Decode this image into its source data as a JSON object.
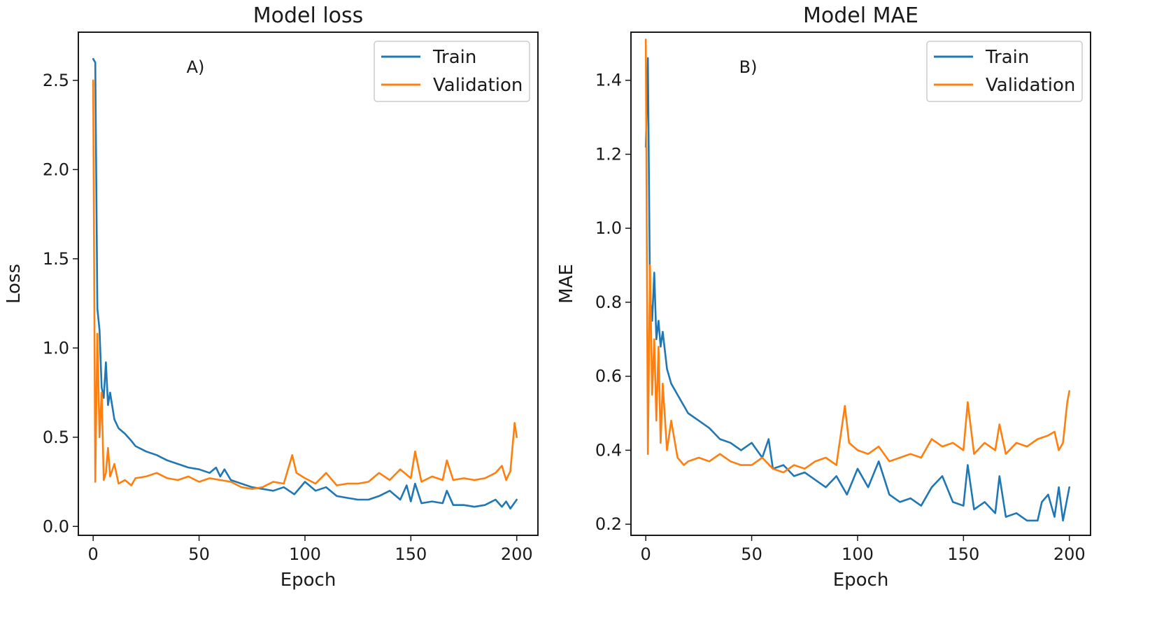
{
  "chart_data": [
    {
      "id": "loss",
      "type": "line",
      "title": "Model loss",
      "panel_label": "A)",
      "xlabel": "Epoch",
      "ylabel": "Loss",
      "xlim": [
        -7,
        210
      ],
      "ylim": [
        -0.05,
        2.77
      ],
      "xticks": [
        0,
        50,
        100,
        150,
        200
      ],
      "xtick_labels": [
        "0",
        "50",
        "100",
        "150",
        "200"
      ],
      "yticks": [
        0.0,
        0.5,
        1.0,
        1.5,
        2.0,
        2.5
      ],
      "ytick_labels": [
        "0.0",
        "0.5",
        "1.0",
        "1.5",
        "2.0",
        "2.5"
      ],
      "legend_position": "top-right",
      "series": [
        {
          "name": "Train",
          "color": "#1f77b4",
          "x": [
            0,
            1,
            2,
            3,
            4,
            5,
            6,
            7,
            8,
            10,
            12,
            15,
            18,
            20,
            25,
            30,
            35,
            40,
            45,
            50,
            55,
            58,
            60,
            62,
            65,
            70,
            75,
            80,
            85,
            90,
            95,
            100,
            105,
            110,
            115,
            120,
            125,
            130,
            135,
            140,
            145,
            148,
            150,
            152,
            155,
            160,
            165,
            167,
            170,
            175,
            180,
            185,
            190,
            193,
            195,
            197,
            200
          ],
          "values": [
            2.62,
            2.6,
            1.22,
            1.1,
            0.78,
            0.72,
            0.92,
            0.68,
            0.75,
            0.6,
            0.55,
            0.52,
            0.48,
            0.45,
            0.42,
            0.4,
            0.37,
            0.35,
            0.33,
            0.32,
            0.3,
            0.33,
            0.28,
            0.32,
            0.26,
            0.24,
            0.22,
            0.21,
            0.2,
            0.22,
            0.18,
            0.25,
            0.2,
            0.22,
            0.17,
            0.16,
            0.15,
            0.15,
            0.17,
            0.2,
            0.15,
            0.23,
            0.14,
            0.24,
            0.13,
            0.14,
            0.13,
            0.2,
            0.12,
            0.12,
            0.11,
            0.12,
            0.15,
            0.11,
            0.14,
            0.1,
            0.15
          ]
        },
        {
          "name": "Validation",
          "color": "#ff7f0e",
          "x": [
            0,
            1,
            2,
            3,
            4,
            5,
            6,
            7,
            8,
            10,
            12,
            15,
            18,
            20,
            25,
            30,
            35,
            40,
            45,
            50,
            55,
            60,
            65,
            70,
            75,
            80,
            85,
            90,
            94,
            96,
            100,
            105,
            110,
            115,
            120,
            125,
            130,
            135,
            140,
            145,
            150,
            152,
            155,
            160,
            165,
            167,
            170,
            175,
            180,
            185,
            190,
            193,
            195,
            197,
            199,
            200
          ],
          "values": [
            2.5,
            0.25,
            1.08,
            0.5,
            0.75,
            0.26,
            0.3,
            0.44,
            0.28,
            0.35,
            0.24,
            0.26,
            0.23,
            0.27,
            0.28,
            0.3,
            0.27,
            0.26,
            0.28,
            0.25,
            0.27,
            0.26,
            0.25,
            0.22,
            0.21,
            0.22,
            0.25,
            0.24,
            0.4,
            0.3,
            0.27,
            0.24,
            0.3,
            0.23,
            0.24,
            0.24,
            0.25,
            0.3,
            0.26,
            0.32,
            0.27,
            0.42,
            0.25,
            0.28,
            0.26,
            0.37,
            0.26,
            0.27,
            0.26,
            0.27,
            0.3,
            0.34,
            0.26,
            0.31,
            0.58,
            0.5
          ]
        }
      ]
    },
    {
      "id": "mae",
      "type": "line",
      "title": "Model MAE",
      "panel_label": "B)",
      "xlabel": "Epoch",
      "ylabel": "MAE",
      "xlim": [
        -7,
        210
      ],
      "ylim": [
        0.17,
        1.53
      ],
      "xticks": [
        0,
        50,
        100,
        150,
        200
      ],
      "xtick_labels": [
        "0",
        "50",
        "100",
        "150",
        "200"
      ],
      "yticks": [
        0.2,
        0.4,
        0.6,
        0.8,
        1.0,
        1.2,
        1.4
      ],
      "ytick_labels": [
        "0.2",
        "0.4",
        "0.6",
        "0.8",
        "1.0",
        "1.2",
        "1.4"
      ],
      "legend_position": "top-right",
      "series": [
        {
          "name": "Train",
          "color": "#1f77b4",
          "x": [
            0,
            1,
            2,
            3,
            4,
            5,
            6,
            7,
            8,
            10,
            12,
            15,
            18,
            20,
            25,
            30,
            35,
            40,
            45,
            50,
            55,
            58,
            60,
            65,
            70,
            75,
            80,
            85,
            90,
            95,
            100,
            105,
            110,
            115,
            120,
            125,
            130,
            135,
            140,
            145,
            150,
            152,
            155,
            160,
            165,
            167,
            170,
            175,
            180,
            185,
            187,
            190,
            193,
            195,
            197,
            200
          ],
          "values": [
            1.22,
            1.46,
            0.82,
            0.75,
            0.88,
            0.7,
            0.75,
            0.68,
            0.72,
            0.62,
            0.58,
            0.55,
            0.52,
            0.5,
            0.48,
            0.46,
            0.43,
            0.42,
            0.4,
            0.42,
            0.38,
            0.43,
            0.35,
            0.36,
            0.33,
            0.34,
            0.32,
            0.3,
            0.33,
            0.28,
            0.35,
            0.3,
            0.37,
            0.28,
            0.26,
            0.27,
            0.25,
            0.3,
            0.33,
            0.26,
            0.25,
            0.36,
            0.24,
            0.26,
            0.23,
            0.33,
            0.22,
            0.23,
            0.21,
            0.21,
            0.26,
            0.28,
            0.22,
            0.3,
            0.21,
            0.3
          ]
        },
        {
          "name": "Validation",
          "color": "#ff7f0e",
          "x": [
            0,
            1,
            2,
            3,
            4,
            5,
            6,
            7,
            8,
            10,
            12,
            15,
            18,
            20,
            25,
            30,
            35,
            40,
            45,
            50,
            55,
            60,
            65,
            70,
            75,
            80,
            85,
            90,
            94,
            96,
            100,
            105,
            110,
            115,
            120,
            125,
            130,
            135,
            140,
            145,
            150,
            152,
            155,
            160,
            165,
            167,
            170,
            175,
            180,
            185,
            190,
            193,
            195,
            197,
            199,
            200
          ],
          "values": [
            1.51,
            0.39,
            0.9,
            0.55,
            0.7,
            0.48,
            0.68,
            0.42,
            0.58,
            0.4,
            0.48,
            0.38,
            0.36,
            0.37,
            0.38,
            0.37,
            0.39,
            0.37,
            0.36,
            0.36,
            0.38,
            0.35,
            0.34,
            0.36,
            0.35,
            0.37,
            0.38,
            0.36,
            0.52,
            0.42,
            0.4,
            0.39,
            0.41,
            0.37,
            0.38,
            0.39,
            0.38,
            0.43,
            0.41,
            0.42,
            0.4,
            0.53,
            0.39,
            0.42,
            0.4,
            0.47,
            0.39,
            0.42,
            0.41,
            0.43,
            0.44,
            0.45,
            0.4,
            0.42,
            0.53,
            0.56
          ]
        }
      ]
    }
  ]
}
